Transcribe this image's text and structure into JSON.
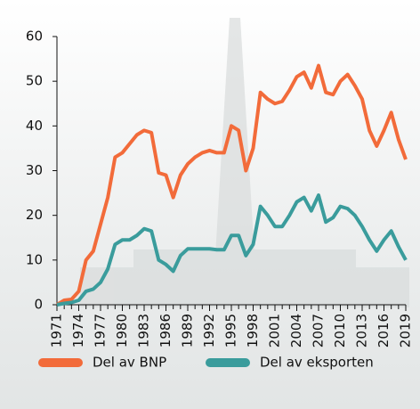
{
  "chart_data": {
    "type": "line",
    "x": [
      1971,
      1972,
      1973,
      1974,
      1975,
      1976,
      1977,
      1978,
      1979,
      1980,
      1981,
      1982,
      1983,
      1984,
      1985,
      1986,
      1987,
      1988,
      1989,
      1990,
      1991,
      1992,
      1993,
      1994,
      1995,
      1996,
      1997,
      1998,
      1999,
      2000,
      2001,
      2002,
      2003,
      2004,
      2005,
      2006,
      2007,
      2008,
      2009,
      2010,
      2011,
      2012,
      2013,
      2014,
      2015,
      2016,
      2017,
      2018,
      2019
    ],
    "series": [
      {
        "name": "Del av BNP",
        "color": "#f26b3a",
        "values": [
          0,
          1,
          1.2,
          3,
          10,
          12,
          18,
          24,
          33,
          34,
          36,
          38,
          39,
          38.5,
          29.5,
          29,
          24,
          29,
          31.5,
          33,
          34,
          34.5,
          34,
          34,
          40,
          39,
          30,
          35,
          47.5,
          46,
          45,
          45.5,
          48,
          51,
          52,
          48.5,
          53.5,
          47.5,
          47,
          50,
          51.5,
          49,
          46,
          39,
          35.5,
          39,
          43,
          37,
          32.5
        ]
      },
      {
        "name": "Del av eksporten",
        "color": "#3a9c9c",
        "values": [
          0,
          0.3,
          0.5,
          1,
          3,
          3.5,
          5,
          8,
          13.5,
          14.5,
          14.5,
          15.5,
          17,
          16.5,
          10,
          9,
          7.5,
          11,
          12.5,
          12.5,
          12.5,
          12.5,
          12.3,
          12.3,
          15.5,
          15.5,
          11,
          13.5,
          22,
          20,
          17.5,
          17.5,
          20,
          23,
          24,
          21,
          24.5,
          18.5,
          19.5,
          22,
          21.5,
          20,
          17.5,
          14.5,
          12,
          14.5,
          16.5,
          13,
          10
        ]
      }
    ],
    "xlim": [
      1971,
      2019
    ],
    "xticks": [
      1971,
      1974,
      1977,
      1980,
      1983,
      1986,
      1989,
      1992,
      1995,
      1998,
      2001,
      2004,
      2007,
      2010,
      2013,
      2016,
      2019
    ],
    "ylim": [
      0,
      60
    ],
    "yticks": [
      0,
      10,
      20,
      30,
      40,
      50,
      60
    ],
    "legend": "bottom"
  }
}
